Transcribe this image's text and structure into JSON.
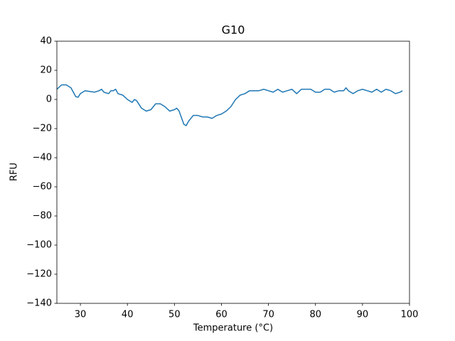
{
  "chart_data": {
    "type": "line",
    "title": "G10",
    "xlabel": "Temperature (°C)",
    "ylabel": "RFU",
    "color": "#1f77b4",
    "x": [
      25,
      26,
      27,
      28,
      29,
      29.5,
      30,
      31,
      32,
      33,
      34,
      34.5,
      35,
      36,
      36.5,
      37,
      37.5,
      38,
      39,
      40,
      41,
      41.5,
      42,
      43,
      44,
      45,
      46,
      47,
      48,
      49,
      50,
      50.5,
      51,
      52,
      52.5,
      53,
      54,
      55,
      56,
      57,
      58,
      59,
      60,
      61,
      62,
      63,
      64,
      65,
      66,
      67,
      68,
      69,
      70,
      71,
      72,
      73,
      74,
      75,
      76,
      77,
      78,
      79,
      80,
      81,
      82,
      83,
      84,
      85,
      86,
      86.5,
      87,
      88,
      89,
      90,
      91,
      92,
      93,
      94,
      95,
      96,
      97,
      98,
      98.5
    ],
    "values": [
      7,
      10,
      10,
      8,
      2,
      1.5,
      4,
      6,
      5.5,
      5,
      6,
      7,
      5,
      4,
      6,
      6,
      7,
      4,
      3,
      0,
      -2,
      0,
      -1,
      -6,
      -8,
      -7,
      -3,
      -3,
      -5,
      -8,
      -7,
      -6,
      -8,
      -17,
      -18,
      -15,
      -11,
      -11,
      -12,
      -12,
      -13,
      -11,
      -10,
      -8,
      -5,
      0,
      3,
      4,
      6,
      6,
      6,
      7,
      6,
      5,
      7,
      5,
      6,
      7,
      4,
      7,
      7,
      7,
      5,
      5,
      7,
      7,
      5,
      6,
      6,
      8,
      6,
      4,
      6,
      7,
      6,
      5,
      7,
      5,
      7,
      6,
      4,
      5,
      6
    ],
    "xlim": [
      25,
      100
    ],
    "ylim": [
      -140,
      40
    ],
    "xticks": [
      30,
      40,
      50,
      60,
      70,
      80,
      90,
      100
    ],
    "yticks": [
      {
        "value": -140,
        "label": "−140"
      },
      {
        "value": -120,
        "label": "−120"
      },
      {
        "value": -100,
        "label": "−100"
      },
      {
        "value": -80,
        "label": "−80"
      },
      {
        "value": -60,
        "label": "−60"
      },
      {
        "value": -40,
        "label": "−40"
      },
      {
        "value": -20,
        "label": "−20"
      },
      0,
      20,
      40
    ],
    "grid": false
  }
}
